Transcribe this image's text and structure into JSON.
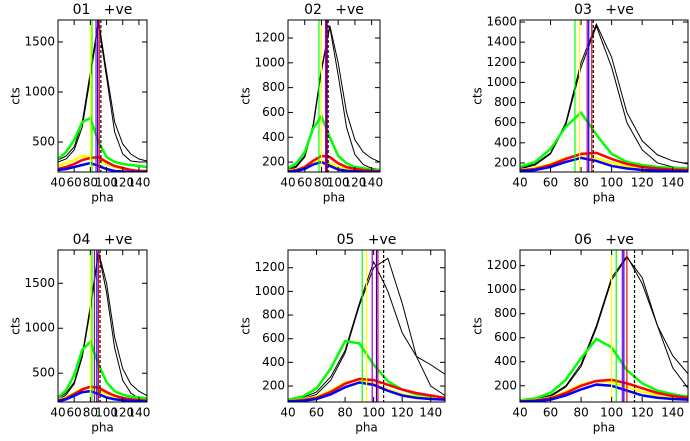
{
  "chart_data": [
    {
      "type": "line",
      "title": "01   +ve",
      "xlabel": "pha",
      "ylabel": "cts",
      "x": [
        40,
        50,
        60,
        70,
        80,
        90,
        100,
        110,
        120,
        130,
        140,
        150
      ],
      "xlim": [
        40,
        150
      ],
      "xticks": [
        40,
        60,
        80,
        100,
        120,
        140
      ],
      "ylim": [
        200,
        1720
      ],
      "yticks": [
        500,
        1000,
        1500
      ],
      "series": [
        {
          "color": "#000000",
          "values": [
            320,
            360,
            450,
            700,
            1200,
            1720,
            1200,
            700,
            480,
            380,
            330,
            310
          ]
        },
        {
          "color": "#000000",
          "values": [
            300,
            330,
            420,
            650,
            1150,
            1680,
            1150,
            600,
            380,
            310,
            300,
            300
          ]
        },
        {
          "color": "#00ff00",
          "values": [
            330,
            400,
            520,
            700,
            740,
            500,
            350,
            300,
            280,
            270,
            260,
            250
          ]
        },
        {
          "color": "#ffff00",
          "values": [
            260,
            290,
            320,
            360,
            350,
            320,
            280,
            250,
            230,
            220,
            210,
            210
          ]
        },
        {
          "color": "#ff0000",
          "values": [
            230,
            250,
            280,
            320,
            340,
            350,
            300,
            260,
            240,
            220,
            210,
            210
          ]
        },
        {
          "color": "#0000ff",
          "values": [
            220,
            230,
            250,
            270,
            290,
            260,
            230,
            210,
            205,
            200,
            200,
            200
          ]
        }
      ],
      "vlines": [
        {
          "color": "#ffff00",
          "x": 80
        },
        {
          "color": "#00ff00",
          "x": 82
        },
        {
          "color": "#a000c0",
          "x": 87
        },
        {
          "color": "#0000ff",
          "x": 89
        },
        {
          "color": "#ff0000",
          "x": 91
        },
        {
          "color": "#000000",
          "x": 93,
          "dash": true
        }
      ]
    },
    {
      "type": "line",
      "title": "02   +ve",
      "xlabel": "pha",
      "ylabel": "cts",
      "x": [
        40,
        50,
        60,
        70,
        80,
        90,
        100,
        110,
        120,
        130,
        140,
        150
      ],
      "xlim": [
        40,
        150
      ],
      "xticks": [
        40,
        60,
        80,
        100,
        120,
        140
      ],
      "ylim": [
        120,
        1345
      ],
      "yticks": [
        200,
        400,
        600,
        800,
        1000,
        1200
      ],
      "series": [
        {
          "color": "#000000",
          "values": [
            140,
            170,
            250,
            500,
            950,
            1300,
            1000,
            600,
            380,
            280,
            230,
            200
          ]
        },
        {
          "color": "#000000",
          "values": [
            130,
            160,
            240,
            480,
            930,
            1290,
            900,
            480,
            260,
            180,
            150,
            140
          ]
        },
        {
          "color": "#00ff00",
          "values": [
            150,
            190,
            280,
            470,
            570,
            400,
            250,
            190,
            160,
            150,
            140,
            135
          ]
        },
        {
          "color": "#ffff00",
          "values": [
            130,
            140,
            160,
            200,
            210,
            190,
            160,
            145,
            135,
            130,
            125,
            125
          ]
        },
        {
          "color": "#ff0000",
          "values": [
            125,
            135,
            160,
            210,
            250,
            240,
            190,
            160,
            145,
            135,
            130,
            125
          ]
        },
        {
          "color": "#0000ff",
          "values": [
            122,
            128,
            145,
            180,
            200,
            170,
            140,
            130,
            125,
            122,
            121,
            120
          ]
        }
      ],
      "vlines": [
        {
          "color": "#00ff00",
          "x": 77
        },
        {
          "color": "#ffff00",
          "x": 80
        },
        {
          "color": "#a000c0",
          "x": 85
        },
        {
          "color": "#0000ff",
          "x": 86
        },
        {
          "color": "#ff0000",
          "x": 87
        },
        {
          "color": "#000000",
          "x": 88,
          "dash": true
        }
      ]
    },
    {
      "type": "line",
      "title": "03   +ve",
      "xlabel": "pha",
      "ylabel": "cts",
      "x": [
        40,
        50,
        60,
        70,
        80,
        90,
        100,
        110,
        120,
        130,
        140,
        150
      ],
      "xlim": [
        40,
        150
      ],
      "xticks": [
        40,
        60,
        80,
        100,
        120,
        140
      ],
      "ylim": [
        110,
        1620
      ],
      "yticks": [
        200,
        400,
        600,
        800,
        1000,
        1200,
        1400,
        1600
      ],
      "series": [
        {
          "color": "#000000",
          "values": [
            150,
            190,
            300,
            600,
            1200,
            1580,
            1250,
            700,
            420,
            280,
            220,
            190
          ]
        },
        {
          "color": "#000000",
          "values": [
            140,
            180,
            290,
            580,
            1150,
            1560,
            1150,
            600,
            330,
            200,
            160,
            150
          ]
        },
        {
          "color": "#00ff00",
          "values": [
            160,
            210,
            340,
            560,
            700,
            480,
            290,
            210,
            180,
            160,
            150,
            145
          ]
        },
        {
          "color": "#ffff00",
          "values": [
            130,
            150,
            190,
            250,
            280,
            250,
            200,
            170,
            150,
            140,
            135,
            130
          ]
        },
        {
          "color": "#ff0000",
          "values": [
            125,
            140,
            180,
            240,
            290,
            300,
            240,
            190,
            160,
            145,
            135,
            130
          ]
        },
        {
          "color": "#0000ff",
          "values": [
            120,
            130,
            160,
            210,
            250,
            220,
            170,
            145,
            130,
            125,
            120,
            118
          ]
        }
      ],
      "vlines": [
        {
          "color": "#00ff00",
          "x": 76
        },
        {
          "color": "#ffff00",
          "x": 79
        },
        {
          "color": "#a000c0",
          "x": 84
        },
        {
          "color": "#0000ff",
          "x": 85
        },
        {
          "color": "#ff0000",
          "x": 87
        },
        {
          "color": "#000000",
          "x": 88,
          "dash": true
        }
      ]
    },
    {
      "type": "line",
      "title": "04   +ve",
      "xlabel": "pha",
      "ylabel": "cts",
      "x": [
        40,
        50,
        60,
        70,
        80,
        90,
        100,
        110,
        120,
        130,
        140,
        150
      ],
      "xlim": [
        40,
        150
      ],
      "xticks": [
        40,
        60,
        80,
        100,
        120,
        140
      ],
      "ylim": [
        180,
        1870
      ],
      "yticks": [
        500,
        1000,
        1500
      ],
      "series": [
        {
          "color": "#000000",
          "values": [
            220,
            280,
            400,
            700,
            1250,
            1850,
            1500,
            900,
            550,
            380,
            300,
            250
          ]
        },
        {
          "color": "#000000",
          "values": [
            200,
            260,
            380,
            680,
            1200,
            1840,
            1400,
            780,
            420,
            280,
            220,
            200
          ]
        },
        {
          "color": "#00ff00",
          "values": [
            230,
            310,
            480,
            760,
            850,
            600,
            400,
            300,
            260,
            240,
            230,
            220
          ]
        },
        {
          "color": "#ffff00",
          "values": [
            200,
            230,
            280,
            330,
            340,
            310,
            270,
            240,
            220,
            210,
            200,
            195
          ]
        },
        {
          "color": "#ff0000",
          "values": [
            195,
            220,
            270,
            320,
            350,
            340,
            290,
            250,
            225,
            210,
            200,
            195
          ]
        },
        {
          "color": "#0000ff",
          "values": [
            190,
            210,
            250,
            290,
            300,
            270,
            230,
            210,
            200,
            195,
            190,
            185
          ]
        }
      ],
      "vlines": [
        {
          "color": "#ffff00",
          "x": 80
        },
        {
          "color": "#00ff00",
          "x": 82
        },
        {
          "color": "#a000c0",
          "x": 85
        },
        {
          "color": "#0000ff",
          "x": 88
        },
        {
          "color": "#ff0000",
          "x": 90
        },
        {
          "color": "#000000",
          "x": 92,
          "dash": true
        }
      ]
    },
    {
      "type": "line",
      "title": "05   +ve",
      "xlabel": "pha",
      "ylabel": "cts",
      "x": [
        40,
        50,
        60,
        70,
        80,
        90,
        100,
        110,
        120,
        130,
        140,
        150
      ],
      "xlim": [
        40,
        150
      ],
      "xticks": [
        40,
        60,
        80,
        100,
        120,
        140
      ],
      "ylim": [
        65,
        1350
      ],
      "yticks": [
        200,
        400,
        600,
        800,
        1000,
        1200
      ],
      "series": [
        {
          "color": "#000000",
          "values": [
            80,
            100,
            150,
            280,
            500,
            900,
            1250,
            1000,
            650,
            450,
            380,
            300
          ]
        },
        {
          "color": "#000000",
          "values": [
            75,
            90,
            130,
            250,
            480,
            880,
            1200,
            1280,
            900,
            450,
            200,
            120
          ]
        },
        {
          "color": "#00ff00",
          "values": [
            85,
            110,
            180,
            350,
            580,
            560,
            380,
            240,
            170,
            130,
            110,
            100
          ]
        },
        {
          "color": "#ffff00",
          "values": [
            75,
            85,
            110,
            160,
            230,
            250,
            220,
            170,
            130,
            110,
            95,
            90
          ]
        },
        {
          "color": "#ff0000",
          "values": [
            72,
            80,
            100,
            150,
            220,
            260,
            250,
            210,
            170,
            140,
            120,
            100
          ]
        },
        {
          "color": "#0000ff",
          "values": [
            70,
            75,
            90,
            130,
            190,
            230,
            210,
            160,
            120,
            100,
            90,
            85
          ]
        }
      ],
      "vlines": [
        {
          "color": "#00ff00",
          "x": 92
        },
        {
          "color": "#ffff00",
          "x": 95
        },
        {
          "color": "#a000c0",
          "x": 99
        },
        {
          "color": "#0000ff",
          "x": 102
        },
        {
          "color": "#ff0000",
          "x": 103
        },
        {
          "color": "#000000",
          "x": 107,
          "dash": true
        }
      ]
    },
    {
      "type": "line",
      "title": "06   +ve",
      "xlabel": "pha",
      "ylabel": "cts",
      "x": [
        40,
        50,
        60,
        70,
        80,
        90,
        100,
        110,
        120,
        130,
        140,
        150
      ],
      "xlim": [
        40,
        150
      ],
      "xticks": [
        40,
        60,
        80,
        100,
        120,
        140
      ],
      "ylim": [
        65,
        1330
      ],
      "yticks": [
        200,
        400,
        600,
        800,
        1000,
        1200
      ],
      "series": [
        {
          "color": "#000000",
          "values": [
            75,
            90,
            120,
            200,
            380,
            700,
            1100,
            1280,
            1050,
            700,
            450,
            300
          ]
        },
        {
          "color": "#000000",
          "values": [
            70,
            80,
            110,
            190,
            360,
            680,
            1080,
            1270,
            1100,
            700,
            350,
            180
          ]
        },
        {
          "color": "#00ff00",
          "values": [
            80,
            95,
            140,
            250,
            430,
            590,
            520,
            330,
            220,
            160,
            130,
            110
          ]
        },
        {
          "color": "#ffff00",
          "values": [
            72,
            80,
            100,
            150,
            210,
            240,
            230,
            190,
            150,
            120,
            100,
            90
          ]
        },
        {
          "color": "#ff0000",
          "values": [
            70,
            78,
            95,
            140,
            200,
            240,
            250,
            220,
            180,
            140,
            115,
            100
          ]
        },
        {
          "color": "#0000ff",
          "values": [
            68,
            72,
            85,
            120,
            170,
            210,
            200,
            160,
            120,
            100,
            90,
            85
          ]
        }
      ],
      "vlines": [
        {
          "color": "#ffff00",
          "x": 100
        },
        {
          "color": "#00ff00",
          "x": 103
        },
        {
          "color": "#a000c0",
          "x": 107
        },
        {
          "color": "#0000ff",
          "x": 108
        },
        {
          "color": "#ff0000",
          "x": 110
        },
        {
          "color": "#000000",
          "x": 115,
          "dash": true
        }
      ]
    }
  ]
}
